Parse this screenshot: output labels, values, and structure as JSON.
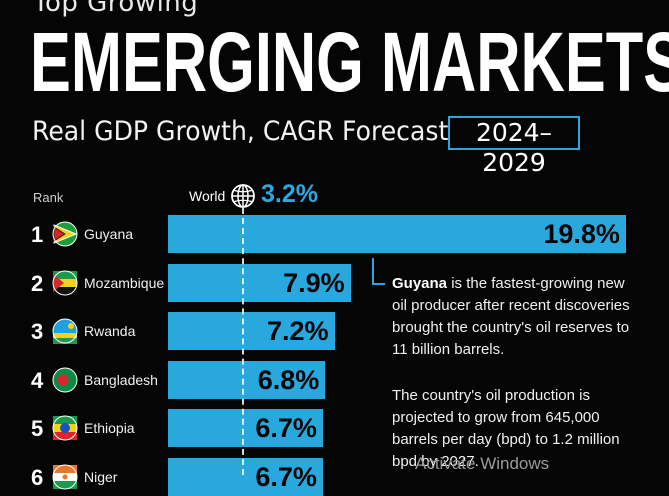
{
  "header": {
    "pretitle": "Top Growing",
    "title": "EMERGING MARKETS",
    "subtitle": "Real GDP Growth, CAGR Forecast",
    "period": "2024–2029"
  },
  "rank_header": "Rank",
  "world": {
    "label": "World",
    "value_label": "3.2%",
    "icon": "globe-icon"
  },
  "accent_color": "#29a8de",
  "chart_data": {
    "type": "bar",
    "orientation": "horizontal",
    "title": "Real GDP Growth, CAGR Forecast",
    "categories": [
      "Guyana",
      "Mozambique",
      "Rwanda",
      "Bangladesh",
      "Ethiopia",
      "Niger"
    ],
    "ranks": [
      1,
      2,
      3,
      4,
      5,
      6
    ],
    "values": [
      19.8,
      7.9,
      7.2,
      6.8,
      6.7,
      6.7
    ],
    "value_labels": [
      "19.8%",
      "7.9%",
      "7.2%",
      "6.8%",
      "6.7%",
      "6.7%"
    ],
    "reference_line": {
      "label": "World",
      "value": 3.2
    },
    "flags": [
      "guyana-flag-icon",
      "mozambique-flag-icon",
      "rwanda-flag-icon",
      "bangladesh-flag-icon",
      "ethiopia-flag-icon",
      "niger-flag-icon"
    ],
    "bar_color": "#29a8de"
  },
  "annotation": {
    "highlight": "Guyana",
    "text_1": " is the fastest-growing new oil producer after recent discoveries brought the country's oil reserves to 11 billion barrels.",
    "text_2": "The country's oil production is projected to grow from 645,000 barrels per day (bpd) to 1.2 million bpd by 2027."
  },
  "watermark": "Activate Windows"
}
